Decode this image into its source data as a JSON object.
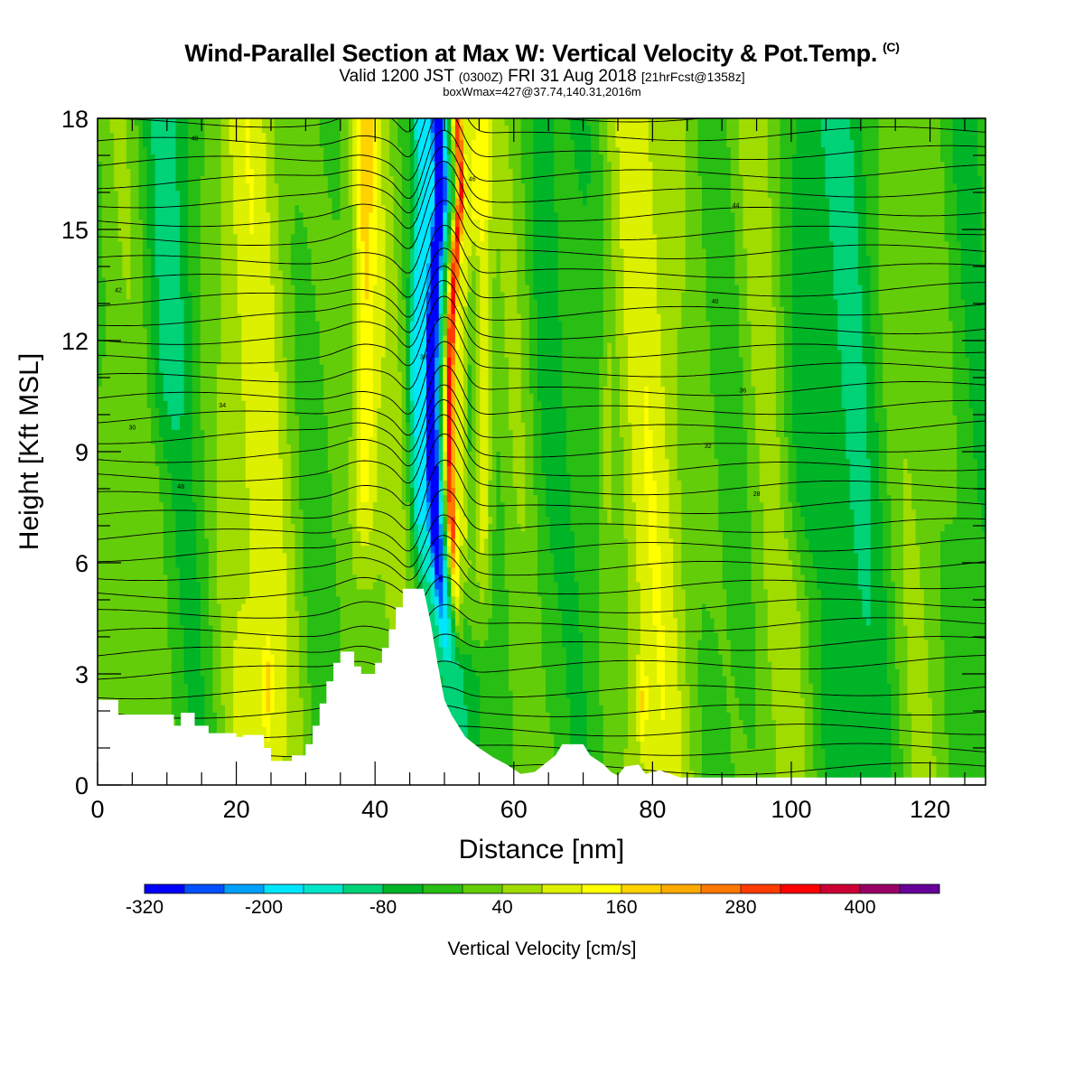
{
  "header": {
    "title": "Wind-Parallel Section at Max W: Vertical Velocity & Pot.Temp.",
    "copyright": "(C)",
    "valid_main": "Valid 1200 JST",
    "valid_utc": "(0300Z)",
    "valid_date": "FRI 31 Aug 2018",
    "forecast": "[21hrFcst@1358z]",
    "box_info": "boxWmax=427@37.74,140.31,2016m"
  },
  "chart_data": {
    "type": "heatmap",
    "xlabel": "Distance [nm]",
    "ylabel": "Height [Kft MSL]",
    "xlim": [
      0,
      128
    ],
    "ylim": [
      0,
      18
    ],
    "x_ticks": [
      0,
      20,
      40,
      60,
      80,
      100,
      120
    ],
    "y_ticks": [
      0,
      3,
      6,
      9,
      12,
      15,
      18
    ],
    "terrain": [
      [
        0,
        2.3
      ],
      [
        3,
        2.3
      ],
      [
        3,
        1.9
      ],
      [
        11,
        1.9
      ],
      [
        11,
        1.6
      ],
      [
        12,
        1.6
      ],
      [
        12,
        1.95
      ],
      [
        14,
        1.95
      ],
      [
        14,
        1.6
      ],
      [
        16,
        1.6
      ],
      [
        16,
        1.4
      ],
      [
        20,
        1.4
      ],
      [
        20,
        1.3
      ],
      [
        21,
        1.3
      ],
      [
        21,
        1.35
      ],
      [
        24,
        1.35
      ],
      [
        24,
        1.0
      ],
      [
        25,
        1.0
      ],
      [
        25,
        0.65
      ],
      [
        28,
        0.65
      ],
      [
        28,
        0.8
      ],
      [
        30,
        0.8
      ],
      [
        30,
        1.1
      ],
      [
        31,
        1.1
      ],
      [
        31,
        1.6
      ],
      [
        32,
        1.6
      ],
      [
        32,
        2.2
      ],
      [
        33,
        2.2
      ],
      [
        33,
        2.8
      ],
      [
        34,
        2.8
      ],
      [
        34,
        3.3
      ],
      [
        35,
        3.3
      ],
      [
        35,
        3.6
      ],
      [
        37,
        3.6
      ],
      [
        37,
        3.2
      ],
      [
        38,
        3.2
      ],
      [
        38,
        3.0
      ],
      [
        40,
        3.0
      ],
      [
        40,
        3.3
      ],
      [
        41,
        3.3
      ],
      [
        41,
        3.7
      ],
      [
        42,
        3.7
      ],
      [
        42,
        4.2
      ],
      [
        43,
        4.2
      ],
      [
        43,
        4.8
      ],
      [
        44,
        4.8
      ],
      [
        44,
        5.3
      ],
      [
        47,
        5.3
      ],
      [
        48,
        4.4
      ],
      [
        49,
        3.3
      ],
      [
        50,
        2.3
      ],
      [
        51,
        1.9
      ],
      [
        52,
        1.6
      ],
      [
        53,
        1.3
      ],
      [
        55,
        1.0
      ],
      [
        57,
        0.75
      ],
      [
        59,
        0.55
      ],
      [
        61,
        0.3
      ],
      [
        63,
        0.35
      ],
      [
        64,
        0.5
      ],
      [
        66,
        0.8
      ],
      [
        67,
        1.1
      ],
      [
        70,
        1.1
      ],
      [
        71,
        0.8
      ],
      [
        73,
        0.55
      ],
      [
        74,
        0.35
      ],
      [
        75,
        0.25
      ],
      [
        76,
        0.5
      ],
      [
        78,
        0.55
      ],
      [
        79,
        0.3
      ],
      [
        81,
        0.4
      ],
      [
        84,
        0.2
      ],
      [
        128,
        0.2
      ]
    ],
    "colorbar": {
      "label": "Vertical Velocity [cm/s]",
      "tick_labels": [
        "-320",
        "-200",
        "-80",
        "40",
        "160",
        "280",
        "400"
      ],
      "tick_values": [
        -320,
        -200,
        -80,
        40,
        160,
        280,
        400
      ],
      "min": -320,
      "max": 480,
      "step": 40,
      "colors": [
        "#0000ff",
        "#0050ff",
        "#00a0ff",
        "#00e6ff",
        "#00e6c8",
        "#00d278",
        "#00b428",
        "#28be14",
        "#64cd0a",
        "#a0dc00",
        "#dcf000",
        "#ffff00",
        "#ffd200",
        "#ffaa00",
        "#ff7800",
        "#ff3c00",
        "#ff0000",
        "#cc0033",
        "#990066",
        "#660099"
      ]
    },
    "contour_labels": [
      "48",
      "46",
      "44",
      "42",
      "40",
      "38",
      "36",
      "34",
      "32",
      "30",
      "28"
    ]
  }
}
